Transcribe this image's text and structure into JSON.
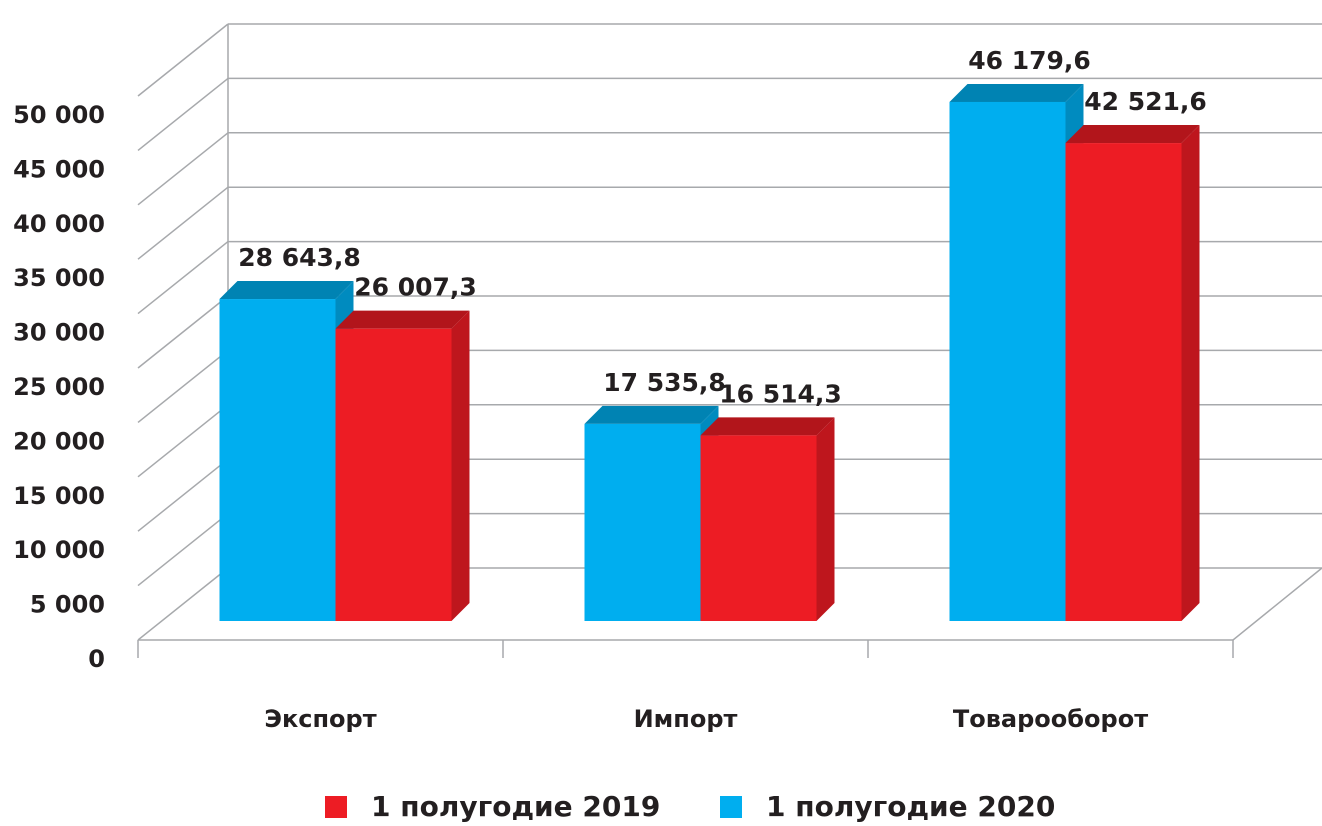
{
  "chart_data": {
    "type": "bar3d",
    "categories": [
      "Экспорт",
      "Импорт",
      "Товарооборот"
    ],
    "series": [
      {
        "name": "1 полугодие 2019",
        "color": "#ed1c24",
        "values": [
          26007.3,
          16514.3,
          42521.6
        ],
        "value_labels": [
          "26 007,3",
          "16 514,3",
          "42 521,6"
        ]
      },
      {
        "name": "1 полугодие 2020",
        "color": "#00aeef",
        "values": [
          28643.8,
          17535.8,
          46179.6
        ],
        "value_labels": [
          "28 643,8",
          "17 535,8",
          "46 179,6"
        ]
      }
    ],
    "ylim": [
      0,
      50000
    ],
    "yticks": [
      0,
      {
        "value": 5000,
        "label": "5 000"
      },
      {
        "value": 10000,
        "label": "10 000"
      },
      {
        "value": 15000,
        "label": "15 000"
      },
      {
        "value": 20000,
        "label": "20 000"
      },
      {
        "value": 25000,
        "label": "25 000"
      },
      {
        "value": 30000,
        "label": "30 000"
      },
      {
        "value": 35000,
        "label": "35 000"
      },
      {
        "value": 40000,
        "label": "40 000"
      },
      {
        "value": 45000,
        "label": "45 000"
      },
      {
        "value": 50000,
        "label": "50 000"
      }
    ],
    "grid": true,
    "legend": "bottom"
  }
}
